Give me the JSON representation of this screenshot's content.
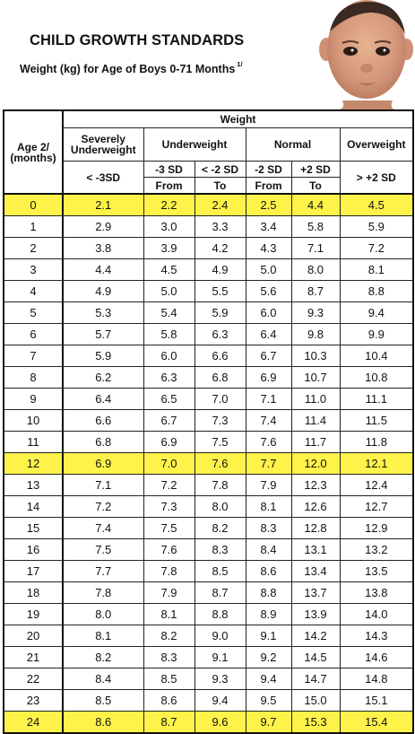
{
  "header": {
    "title": "CHILD GROWTH STANDARDS",
    "subtitle": "Weight (kg) for Age of Boys 0-71 Months",
    "subtitle_note": "1/"
  },
  "table": {
    "age_header": "Age 2/ (months)",
    "age_line1": "Age 2/",
    "age_line2": "(months)",
    "weight_header": "Weight",
    "groups": {
      "severely": {
        "line1": "Severely",
        "line2": "Underweight",
        "range": "< -3SD"
      },
      "underweight": {
        "label": "Underweight",
        "from_sd": "-3 SD",
        "to_sd": "< -2 SD",
        "from": "From",
        "to": "To"
      },
      "normal": {
        "label": "Normal",
        "from_sd": "-2 SD",
        "to_sd": "+2 SD",
        "from": "From",
        "to": "To"
      },
      "overweight": {
        "label": "Overweight",
        "range": "> +2 SD"
      }
    },
    "highlight_color": "#fff34a",
    "rows": [
      {
        "age": "0",
        "sev": "2.1",
        "uf": "2.2",
        "ut": "2.4",
        "nf": "2.5",
        "nt": "4.4",
        "ov": "4.5",
        "hl": true
      },
      {
        "age": "1",
        "sev": "2.9",
        "uf": "3.0",
        "ut": "3.3",
        "nf": "3.4",
        "nt": "5.8",
        "ov": "5.9",
        "hl": false
      },
      {
        "age": "2",
        "sev": "3.8",
        "uf": "3.9",
        "ut": "4.2",
        "nf": "4.3",
        "nt": "7.1",
        "ov": "7.2",
        "hl": false
      },
      {
        "age": "3",
        "sev": "4.4",
        "uf": "4.5",
        "ut": "4.9",
        "nf": "5.0",
        "nt": "8.0",
        "ov": "8.1",
        "hl": false
      },
      {
        "age": "4",
        "sev": "4.9",
        "uf": "5.0",
        "ut": "5.5",
        "nf": "5.6",
        "nt": "8.7",
        "ov": "8.8",
        "hl": false
      },
      {
        "age": "5",
        "sev": "5.3",
        "uf": "5.4",
        "ut": "5.9",
        "nf": "6.0",
        "nt": "9.3",
        "ov": "9.4",
        "hl": false
      },
      {
        "age": "6",
        "sev": "5.7",
        "uf": "5.8",
        "ut": "6.3",
        "nf": "6.4",
        "nt": "9.8",
        "ov": "9.9",
        "hl": false
      },
      {
        "age": "7",
        "sev": "5.9",
        "uf": "6.0",
        "ut": "6.6",
        "nf": "6.7",
        "nt": "10.3",
        "ov": "10.4",
        "hl": false
      },
      {
        "age": "8",
        "sev": "6.2",
        "uf": "6.3",
        "ut": "6.8",
        "nf": "6.9",
        "nt": "10.7",
        "ov": "10.8",
        "hl": false
      },
      {
        "age": "9",
        "sev": "6.4",
        "uf": "6.5",
        "ut": "7.0",
        "nf": "7.1",
        "nt": "11.0",
        "ov": "11.1",
        "hl": false
      },
      {
        "age": "10",
        "sev": "6.6",
        "uf": "6.7",
        "ut": "7.3",
        "nf": "7.4",
        "nt": "11.4",
        "ov": "11.5",
        "hl": false
      },
      {
        "age": "11",
        "sev": "6.8",
        "uf": "6.9",
        "ut": "7.5",
        "nf": "7.6",
        "nt": "11.7",
        "ov": "11.8",
        "hl": false
      },
      {
        "age": "12",
        "sev": "6.9",
        "uf": "7.0",
        "ut": "7.6",
        "nf": "7.7",
        "nt": "12.0",
        "ov": "12.1",
        "hl": true
      },
      {
        "age": "13",
        "sev": "7.1",
        "uf": "7.2",
        "ut": "7.8",
        "nf": "7.9",
        "nt": "12.3",
        "ov": "12.4",
        "hl": false
      },
      {
        "age": "14",
        "sev": "7.2",
        "uf": "7.3",
        "ut": "8.0",
        "nf": "8.1",
        "nt": "12.6",
        "ov": "12.7",
        "hl": false
      },
      {
        "age": "15",
        "sev": "7.4",
        "uf": "7.5",
        "ut": "8.2",
        "nf": "8.3",
        "nt": "12.8",
        "ov": "12.9",
        "hl": false
      },
      {
        "age": "16",
        "sev": "7.5",
        "uf": "7.6",
        "ut": "8.3",
        "nf": "8.4",
        "nt": "13.1",
        "ov": "13.2",
        "hl": false
      },
      {
        "age": "17",
        "sev": "7.7",
        "uf": "7.8",
        "ut": "8.5",
        "nf": "8.6",
        "nt": "13.4",
        "ov": "13.5",
        "hl": false
      },
      {
        "age": "18",
        "sev": "7.8",
        "uf": "7.9",
        "ut": "8.7",
        "nf": "8.8",
        "nt": "13.7",
        "ov": "13.8",
        "hl": false
      },
      {
        "age": "19",
        "sev": "8.0",
        "uf": "8.1",
        "ut": "8.8",
        "nf": "8.9",
        "nt": "13.9",
        "ov": "14.0",
        "hl": false
      },
      {
        "age": "20",
        "sev": "8.1",
        "uf": "8.2",
        "ut": "9.0",
        "nf": "9.1",
        "nt": "14.2",
        "ov": "14.3",
        "hl": false
      },
      {
        "age": "21",
        "sev": "8.2",
        "uf": "8.3",
        "ut": "9.1",
        "nf": "9.2",
        "nt": "14.5",
        "ov": "14.6",
        "hl": false
      },
      {
        "age": "22",
        "sev": "8.4",
        "uf": "8.5",
        "ut": "9.3",
        "nf": "9.4",
        "nt": "14.7",
        "ov": "14.8",
        "hl": false
      },
      {
        "age": "23",
        "sev": "8.5",
        "uf": "8.6",
        "ut": "9.4",
        "nf": "9.5",
        "nt": "15.0",
        "ov": "15.1",
        "hl": false
      },
      {
        "age": "24",
        "sev": "8.6",
        "uf": "8.7",
        "ut": "9.6",
        "nf": "9.7",
        "nt": "15.3",
        "ov": "15.4",
        "hl": true
      }
    ]
  }
}
